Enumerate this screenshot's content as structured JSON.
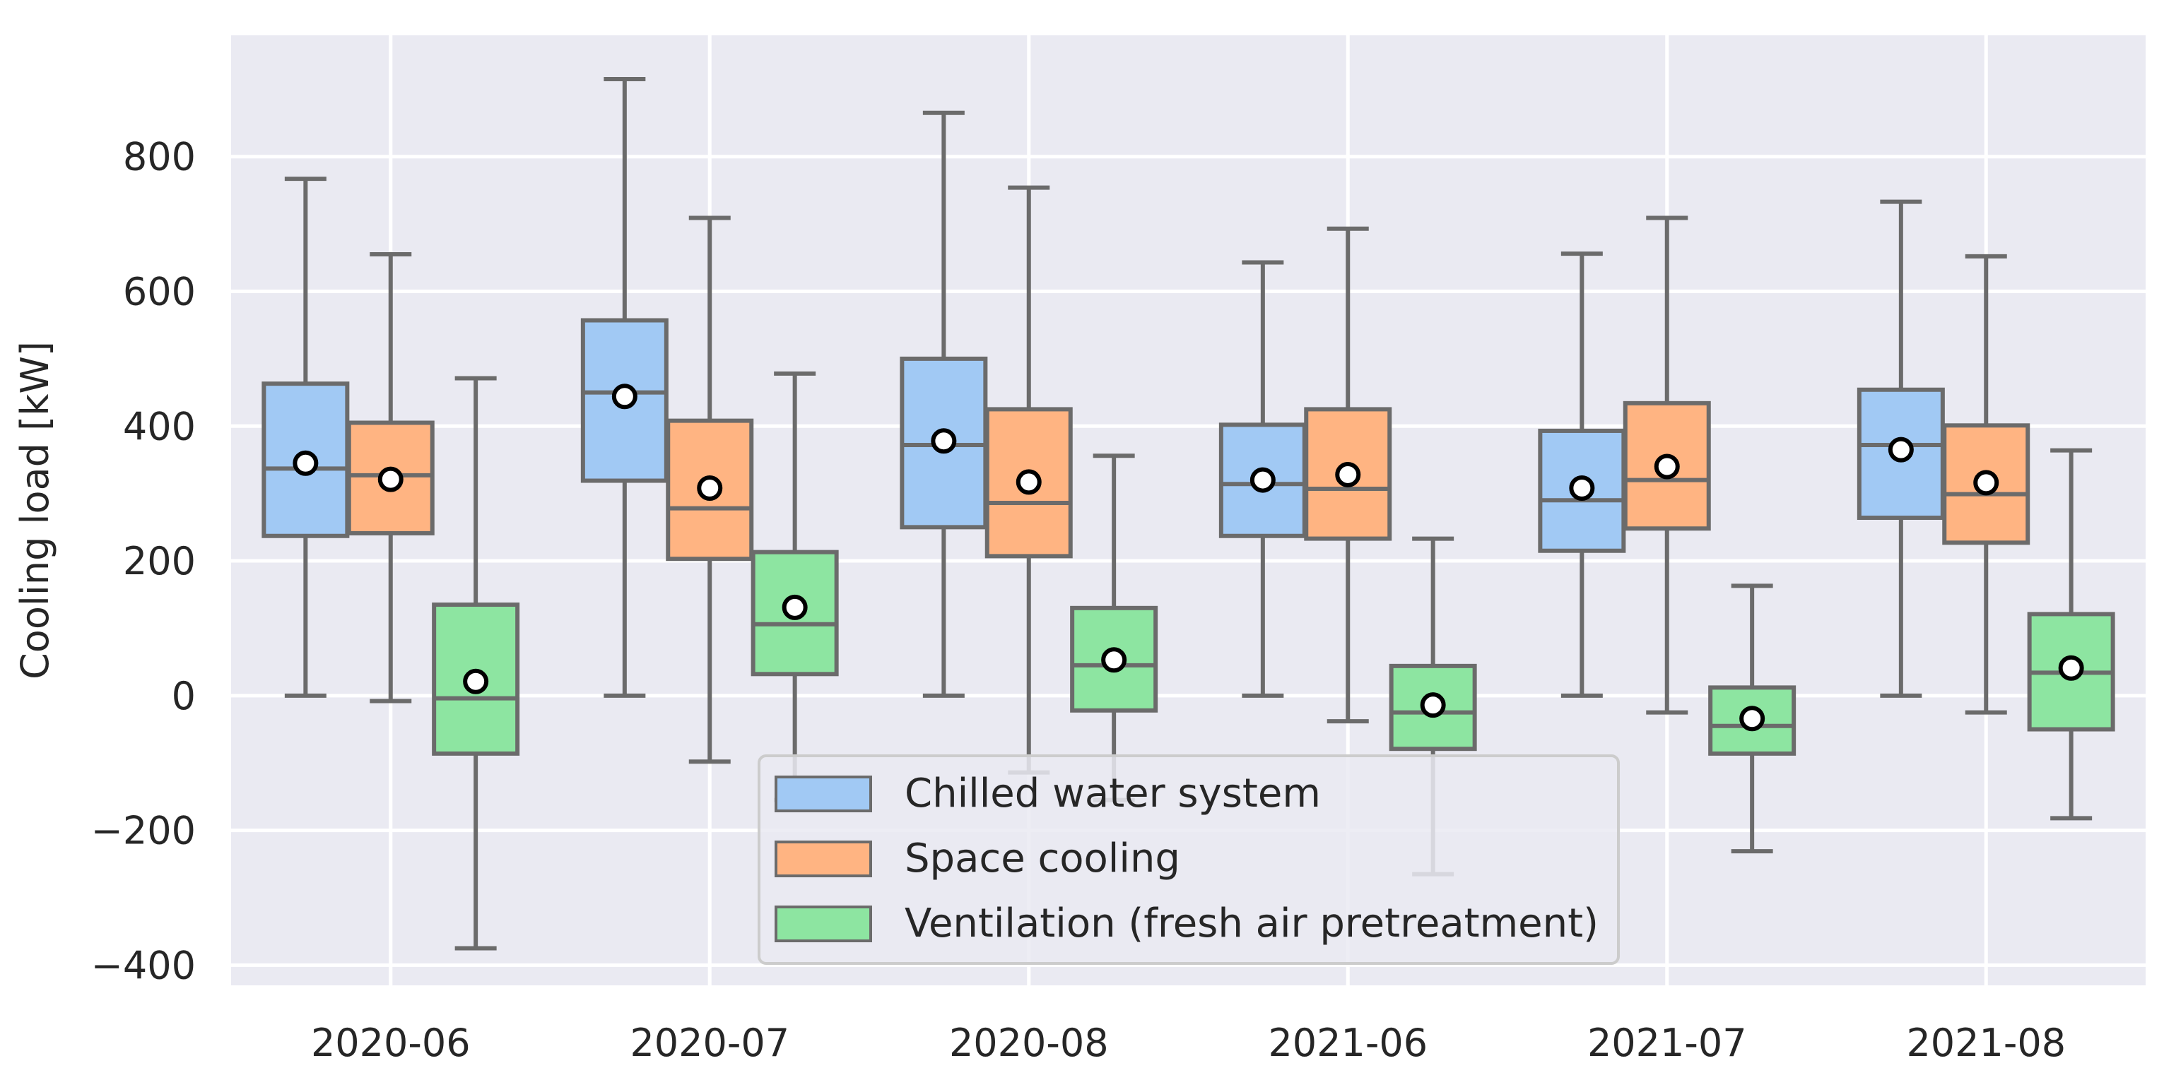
{
  "chart_data": {
    "type": "boxplot",
    "title": "",
    "xlabel": "",
    "ylabel": "Cooling load [kW]",
    "ylim": [
      -430,
      980
    ],
    "yticks": [
      -400,
      -200,
      0,
      200,
      400,
      600,
      800
    ],
    "categories": [
      "2020-06",
      "2020-07",
      "2020-08",
      "2021-06",
      "2021-07",
      "2021-08"
    ],
    "grid": true,
    "legend_position": "bottom-center",
    "colors": {
      "background": "#eaeaf2",
      "grid": "#ffffff",
      "box_edge": "#6b6b6b",
      "mean_fill": "#ffffff",
      "mean_edge": "#000000"
    },
    "series": [
      {
        "name": "Chilled water system",
        "color": "#a1c9f4",
        "boxes": [
          {
            "whisker_low": 0,
            "q1": 237,
            "median": 337,
            "q3": 463,
            "whisker_high": 767,
            "mean": 345
          },
          {
            "whisker_low": 0,
            "q1": 319,
            "median": 450,
            "q3": 557,
            "whisker_high": 915,
            "mean": 444
          },
          {
            "whisker_low": 0,
            "q1": 250,
            "median": 372,
            "q3": 500,
            "whisker_high": 865,
            "mean": 378
          },
          {
            "whisker_low": 0,
            "q1": 237,
            "median": 314,
            "q3": 402,
            "whisker_high": 643,
            "mean": 320
          },
          {
            "whisker_low": 0,
            "q1": 215,
            "median": 290,
            "q3": 393,
            "whisker_high": 656,
            "mean": 308
          },
          {
            "whisker_low": 0,
            "q1": 264,
            "median": 372,
            "q3": 454,
            "whisker_high": 733,
            "mean": 365
          }
        ]
      },
      {
        "name": "Space cooling",
        "color": "#ffb482",
        "boxes": [
          {
            "whisker_low": -8,
            "q1": 241,
            "median": 327,
            "q3": 405,
            "whisker_high": 655,
            "mean": 321
          },
          {
            "whisker_low": -98,
            "q1": 203,
            "median": 278,
            "q3": 408,
            "whisker_high": 709,
            "mean": 308
          },
          {
            "whisker_low": -114,
            "q1": 207,
            "median": 286,
            "q3": 425,
            "whisker_high": 754,
            "mean": 317
          },
          {
            "whisker_low": -38,
            "q1": 233,
            "median": 307,
            "q3": 425,
            "whisker_high": 693,
            "mean": 328
          },
          {
            "whisker_low": -25,
            "q1": 248,
            "median": 320,
            "q3": 434,
            "whisker_high": 709,
            "mean": 340
          },
          {
            "whisker_low": -25,
            "q1": 227,
            "median": 299,
            "q3": 401,
            "whisker_high": 652,
            "mean": 316
          }
        ]
      },
      {
        "name": "Ventilation (fresh air pretreatment)",
        "color": "#8de5a1",
        "boxes": [
          {
            "whisker_low": -375,
            "q1": -86,
            "median": -4,
            "q3": 135,
            "whisker_high": 471,
            "mean": 21
          },
          {
            "whisker_low": -155,
            "q1": 32,
            "median": 106,
            "q3": 213,
            "whisker_high": 478,
            "mean": 131
          },
          {
            "whisker_low": -155,
            "q1": -22,
            "median": 45,
            "q3": 130,
            "whisker_high": 356,
            "mean": 53
          },
          {
            "whisker_low": -265,
            "q1": -79,
            "median": -25,
            "q3": 44,
            "whisker_high": 233,
            "mean": -14
          },
          {
            "whisker_low": -231,
            "q1": -86,
            "median": -45,
            "q3": 12,
            "whisker_high": 163,
            "mean": -34
          },
          {
            "whisker_low": -182,
            "q1": -50,
            "median": 34,
            "q3": 121,
            "whisker_high": 364,
            "mean": 41
          }
        ]
      }
    ]
  }
}
